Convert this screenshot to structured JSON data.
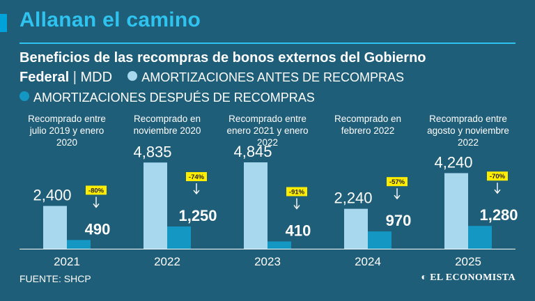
{
  "header": {
    "title": "Allanan el camino",
    "subtitle": "Beneficios de las recompras de bonos externos del Gobierno",
    "subtitle_bold_cont": "Federal",
    "units_separator": "|",
    "units": "MDD"
  },
  "colors": {
    "background": "#1f5e79",
    "title": "#2fc3f0",
    "bar_before": "#a8d8ee",
    "bar_after": "#1597c4",
    "badge": "#ffed00"
  },
  "chart_data": {
    "type": "bar",
    "title": "Beneficios de las recompras de bonos externos del Gobierno Federal",
    "ylabel": "MDD",
    "categories": [
      "2021",
      "2022",
      "2023",
      "2024",
      "2025"
    ],
    "category_notes": [
      "Recomprado entre julio 2019 y enero 2020",
      "Recomprado en noviembre 2020",
      "Recomprado entre enero 2021 y enero 2022",
      "Recomprado en febrero 2022",
      "Recomprado entre agosto y noviembre 2022"
    ],
    "series": [
      {
        "name": "AMORTIZACIONES ANTES DE RECOMPRAS",
        "values": [
          2400,
          4835,
          4845,
          2240,
          4240
        ],
        "labels": [
          "2,400",
          "4,835",
          "4,845",
          "2,240",
          "4,240"
        ]
      },
      {
        "name": "AMORTIZACIONES DESPUÉS DE RECOMPRAS",
        "values": [
          490,
          1250,
          410,
          970,
          1280
        ],
        "labels": [
          "490",
          "1,250",
          "410",
          "970",
          "1,280"
        ]
      }
    ],
    "changes": [
      "-80%",
      "-74%",
      "-91%",
      "-57%",
      "-70%"
    ],
    "ylim": [
      0,
      5000
    ],
    "grid": false,
    "legend": "top"
  },
  "footer": {
    "source": "FUENTE: SHCP",
    "brand": "EL ECONOMISTA"
  }
}
